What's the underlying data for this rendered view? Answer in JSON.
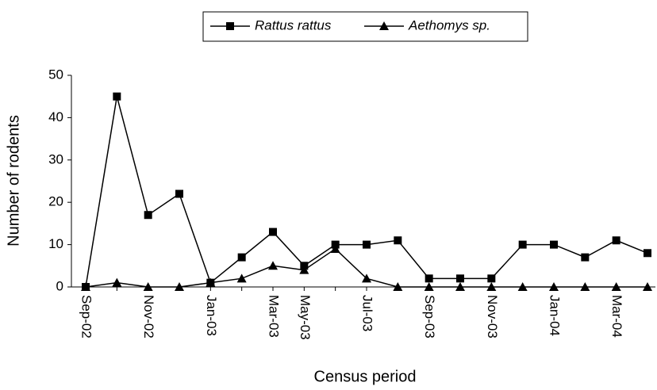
{
  "chart_data": {
    "type": "line",
    "x_label": "Census period",
    "y_label": "Number of rodents",
    "categories": [
      "Sep-02",
      null,
      "Nov-02",
      null,
      "Jan-03",
      null,
      "Mar-03",
      "May-03",
      null,
      "Jul-03",
      null,
      "Sep-03",
      null,
      "Nov-03",
      null,
      "Jan-04",
      null,
      "Mar-04",
      null
    ],
    "series": [
      {
        "name": "Rattus rattus",
        "color": "#000000",
        "marker": "square",
        "values": [
          0,
          45,
          17,
          22,
          1,
          7,
          13,
          5,
          10,
          10,
          11,
          2,
          2,
          2,
          10,
          10,
          7,
          11,
          8
        ]
      },
      {
        "name": "Aethomys sp.",
        "color": "#000000",
        "marker": "triangle",
        "values": [
          0,
          1,
          0,
          0,
          1,
          2,
          5,
          4,
          9,
          2,
          0,
          0,
          0,
          0,
          0,
          0,
          0,
          0,
          0
        ]
      }
    ],
    "ylim": [
      0,
      50
    ],
    "yticks": [
      0,
      10,
      20,
      30,
      40,
      50
    ],
    "grid": false,
    "legend": "top"
  }
}
